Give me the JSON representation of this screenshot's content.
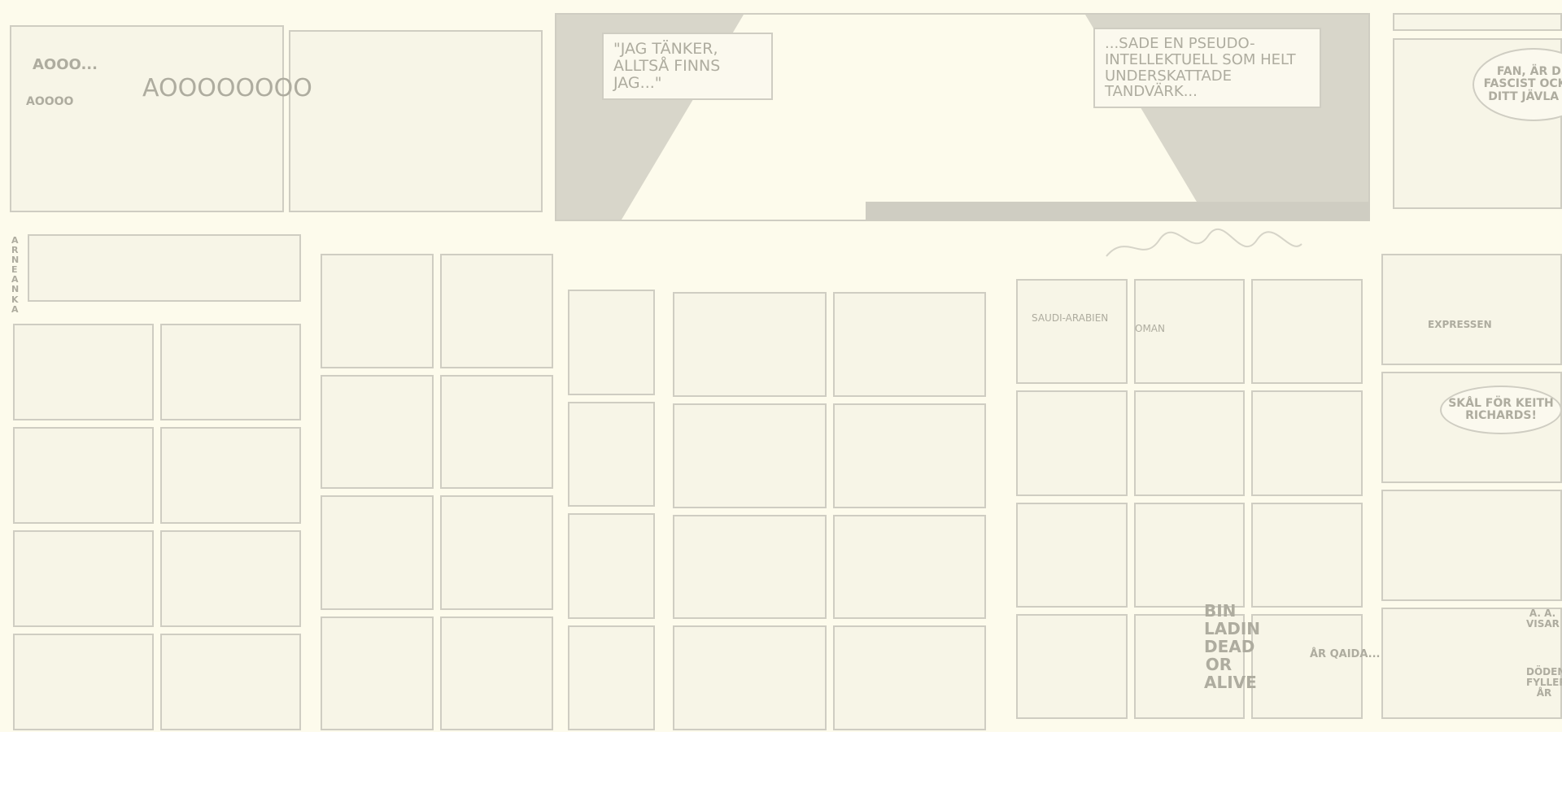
{
  "texts": {
    "howl_1": "AOOO...",
    "howl_2": "AOOOO",
    "howl_3": "AOOOOOOOO",
    "quote_left": "\"JAG TÄNKER, ALLTSÅ FINNS JAG...\"",
    "quote_right": "...SADE EN PSEUDO-INTELLEKTUELL SOM HELT UNDERSKATTADE TANDVÄRK...",
    "right_top": "FAN, ÄR DU FASCIST OCKSÅ DITT JÄVLA FY",
    "series_name": "ARNE ANKA",
    "toast": "SKÅL FÖR KEITH RICHARDS!",
    "bin_ladin": "BIN LADIN DEAD OR ALIVE",
    "saudi": "SAUDI-ARABIEN",
    "oman": "OMAN",
    "qaida": "ÅR QAIDA...",
    "newspaper": "EXPRESSEN",
    "visar": "A. A. VISAR",
    "doden": "DÖDEN FYLLER ÅR"
  }
}
